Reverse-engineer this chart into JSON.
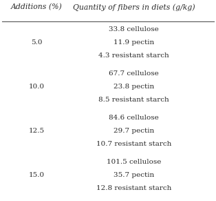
{
  "col1_header": "Additions (%)",
  "col2_header": "Quantity of fibers in diets (g/kg)",
  "rows": [
    {
      "addition": "5.0",
      "lines": [
        "33.8 cellulose",
        "11.9 pectin",
        "4.3 resistant starch"
      ]
    },
    {
      "addition": "10.0",
      "lines": [
        "67.7 cellulose",
        "23.8 pectin",
        "8.5 resistant starch"
      ]
    },
    {
      "addition": "12.5",
      "lines": [
        "84.6 cellulose",
        "29.7 pectin",
        "10.7 resistant starch"
      ]
    },
    {
      "addition": "15.0",
      "lines": [
        "101.5 cellulose",
        "35.7 pectin",
        "12.8 resistant starch"
      ]
    }
  ],
  "text_color": "#2b2b2b",
  "header_color": "#2b2b2b",
  "line_color": "#555555",
  "bg_color": "#ffffff",
  "font_size": 7.5,
  "header_font_size": 7.8
}
